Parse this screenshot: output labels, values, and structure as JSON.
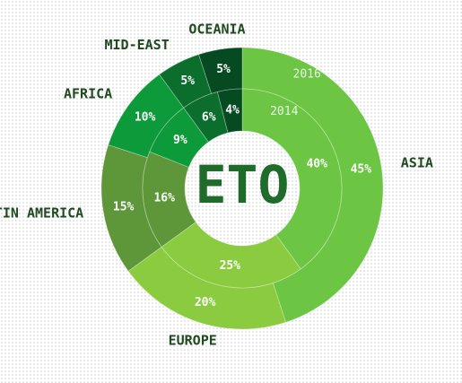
{
  "chart_data": {
    "type": "pie",
    "title": "ETO",
    "categories": [
      "ASIA",
      "EUROPE",
      "LATIN AMERICA",
      "AFRICA",
      "MID-EAST",
      "OCEANIA"
    ],
    "series": [
      {
        "name": "2014",
        "values": [
          40,
          25,
          16,
          9,
          6,
          4
        ]
      },
      {
        "name": "2016",
        "values": [
          45,
          20,
          15,
          10,
          5,
          5
        ]
      }
    ],
    "colors": [
      "#6cc644",
      "#8acb3f",
      "#5e963a",
      "#0d9a3a",
      "#0b6e2c",
      "#064a22"
    ],
    "value_suffix": "%"
  }
}
